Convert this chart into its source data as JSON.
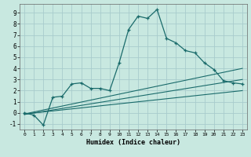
{
  "title": "",
  "xlabel": "Humidex (Indice chaleur)",
  "ylabel": "",
  "bg_color": "#c8e8e0",
  "grid_color": "#a8cccc",
  "line_color": "#1a6b6b",
  "x_main": [
    0,
    1,
    2,
    3,
    4,
    5,
    6,
    7,
    8,
    9,
    10,
    11,
    12,
    13,
    14,
    15,
    16,
    17,
    18,
    19,
    20,
    21,
    22,
    23
  ],
  "y_main": [
    0.0,
    -0.2,
    -1.1,
    1.4,
    1.5,
    2.6,
    2.7,
    2.2,
    2.2,
    2.0,
    4.5,
    7.5,
    8.7,
    8.5,
    9.3,
    6.7,
    6.3,
    5.6,
    5.4,
    4.5,
    3.9,
    2.9,
    2.7,
    2.6
  ],
  "reg_lines": [
    {
      "x0": 0,
      "x1": 23,
      "y0": -0.1,
      "y1": 2.0
    },
    {
      "x0": 0,
      "x1": 23,
      "y0": -0.15,
      "y1": 3.0
    },
    {
      "x0": 0,
      "x1": 23,
      "y0": -0.1,
      "y1": 4.0
    }
  ],
  "ylim": [
    -1.5,
    9.8
  ],
  "xlim": [
    -0.5,
    23.5
  ],
  "yticks": [
    -1,
    0,
    1,
    2,
    3,
    4,
    5,
    6,
    7,
    8,
    9
  ],
  "xticks": [
    0,
    1,
    2,
    3,
    4,
    5,
    6,
    7,
    8,
    9,
    10,
    11,
    12,
    13,
    14,
    15,
    16,
    17,
    18,
    19,
    20,
    21,
    22,
    23
  ]
}
